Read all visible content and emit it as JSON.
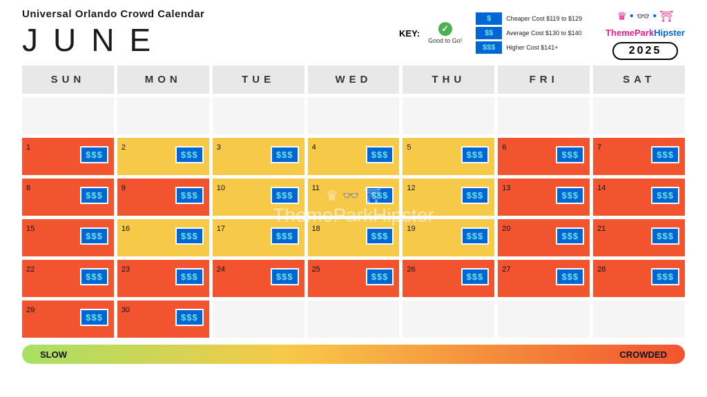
{
  "header": {
    "subtitle": "Universal Orlando Crowd Calendar",
    "month": "JUNE",
    "year": "2025",
    "key_label": "KEY:",
    "good_to_go": "Good to Go!",
    "cost_levels": [
      {
        "symbol": "$",
        "text": "Cheaper Cost $119 to $129"
      },
      {
        "symbol": "$$",
        "text": "Average Cost $130 to $140"
      },
      {
        "symbol": "$$$",
        "text": "Higher Cost $141+"
      }
    ],
    "brand_a": "ThemePark",
    "brand_b": "Hipster"
  },
  "colors": {
    "red": "#f25430",
    "yellow": "#f7c948",
    "blank": "#f5f5f5",
    "badge_bg": "#0066d6",
    "badge_fg": "#6fe0e0"
  },
  "days": [
    "SUN",
    "MON",
    "TUE",
    "WED",
    "THU",
    "FRI",
    "SAT"
  ],
  "cells": [
    {
      "num": "",
      "level": "",
      "badge": ""
    },
    {
      "num": "",
      "level": "",
      "badge": ""
    },
    {
      "num": "",
      "level": "",
      "badge": ""
    },
    {
      "num": "",
      "level": "",
      "badge": ""
    },
    {
      "num": "",
      "level": "",
      "badge": ""
    },
    {
      "num": "",
      "level": "",
      "badge": ""
    },
    {
      "num": "",
      "level": "",
      "badge": ""
    },
    {
      "num": "1",
      "level": "red",
      "badge": "$$$"
    },
    {
      "num": "2",
      "level": "yellow",
      "badge": "$$$"
    },
    {
      "num": "3",
      "level": "yellow",
      "badge": "$$$"
    },
    {
      "num": "4",
      "level": "yellow",
      "badge": "$$$"
    },
    {
      "num": "5",
      "level": "yellow",
      "badge": "$$$"
    },
    {
      "num": "6",
      "level": "red",
      "badge": "$$$"
    },
    {
      "num": "7",
      "level": "red",
      "badge": "$$$"
    },
    {
      "num": "8",
      "level": "red",
      "badge": "$$$"
    },
    {
      "num": "9",
      "level": "red",
      "badge": "$$$"
    },
    {
      "num": "10",
      "level": "yellow",
      "badge": "$$$"
    },
    {
      "num": "11",
      "level": "yellow",
      "badge": "$$$"
    },
    {
      "num": "12",
      "level": "yellow",
      "badge": "$$$"
    },
    {
      "num": "13",
      "level": "red",
      "badge": "$$$"
    },
    {
      "num": "14",
      "level": "red",
      "badge": "$$$"
    },
    {
      "num": "15",
      "level": "red",
      "badge": "$$$"
    },
    {
      "num": "16",
      "level": "yellow",
      "badge": "$$$"
    },
    {
      "num": "17",
      "level": "yellow",
      "badge": "$$$"
    },
    {
      "num": "18",
      "level": "yellow",
      "badge": "$$$"
    },
    {
      "num": "19",
      "level": "yellow",
      "badge": "$$$"
    },
    {
      "num": "20",
      "level": "red",
      "badge": "$$$"
    },
    {
      "num": "21",
      "level": "red",
      "badge": "$$$"
    },
    {
      "num": "22",
      "level": "red",
      "badge": "$$$"
    },
    {
      "num": "23",
      "level": "red",
      "badge": "$$$"
    },
    {
      "num": "24",
      "level": "red",
      "badge": "$$$"
    },
    {
      "num": "25",
      "level": "red",
      "badge": "$$$"
    },
    {
      "num": "26",
      "level": "red",
      "badge": "$$$"
    },
    {
      "num": "27",
      "level": "red",
      "badge": "$$$"
    },
    {
      "num": "28",
      "level": "red",
      "badge": "$$$"
    },
    {
      "num": "29",
      "level": "red",
      "badge": "$$$"
    },
    {
      "num": "30",
      "level": "red",
      "badge": "$$$"
    },
    {
      "num": "",
      "level": "",
      "badge": ""
    },
    {
      "num": "",
      "level": "",
      "badge": ""
    },
    {
      "num": "",
      "level": "",
      "badge": ""
    },
    {
      "num": "",
      "level": "",
      "badge": ""
    },
    {
      "num": "",
      "level": "",
      "badge": ""
    }
  ],
  "spectrum": {
    "left": "SLOW",
    "right": "CROWDED"
  },
  "watermark": "ThemeParkHipster"
}
